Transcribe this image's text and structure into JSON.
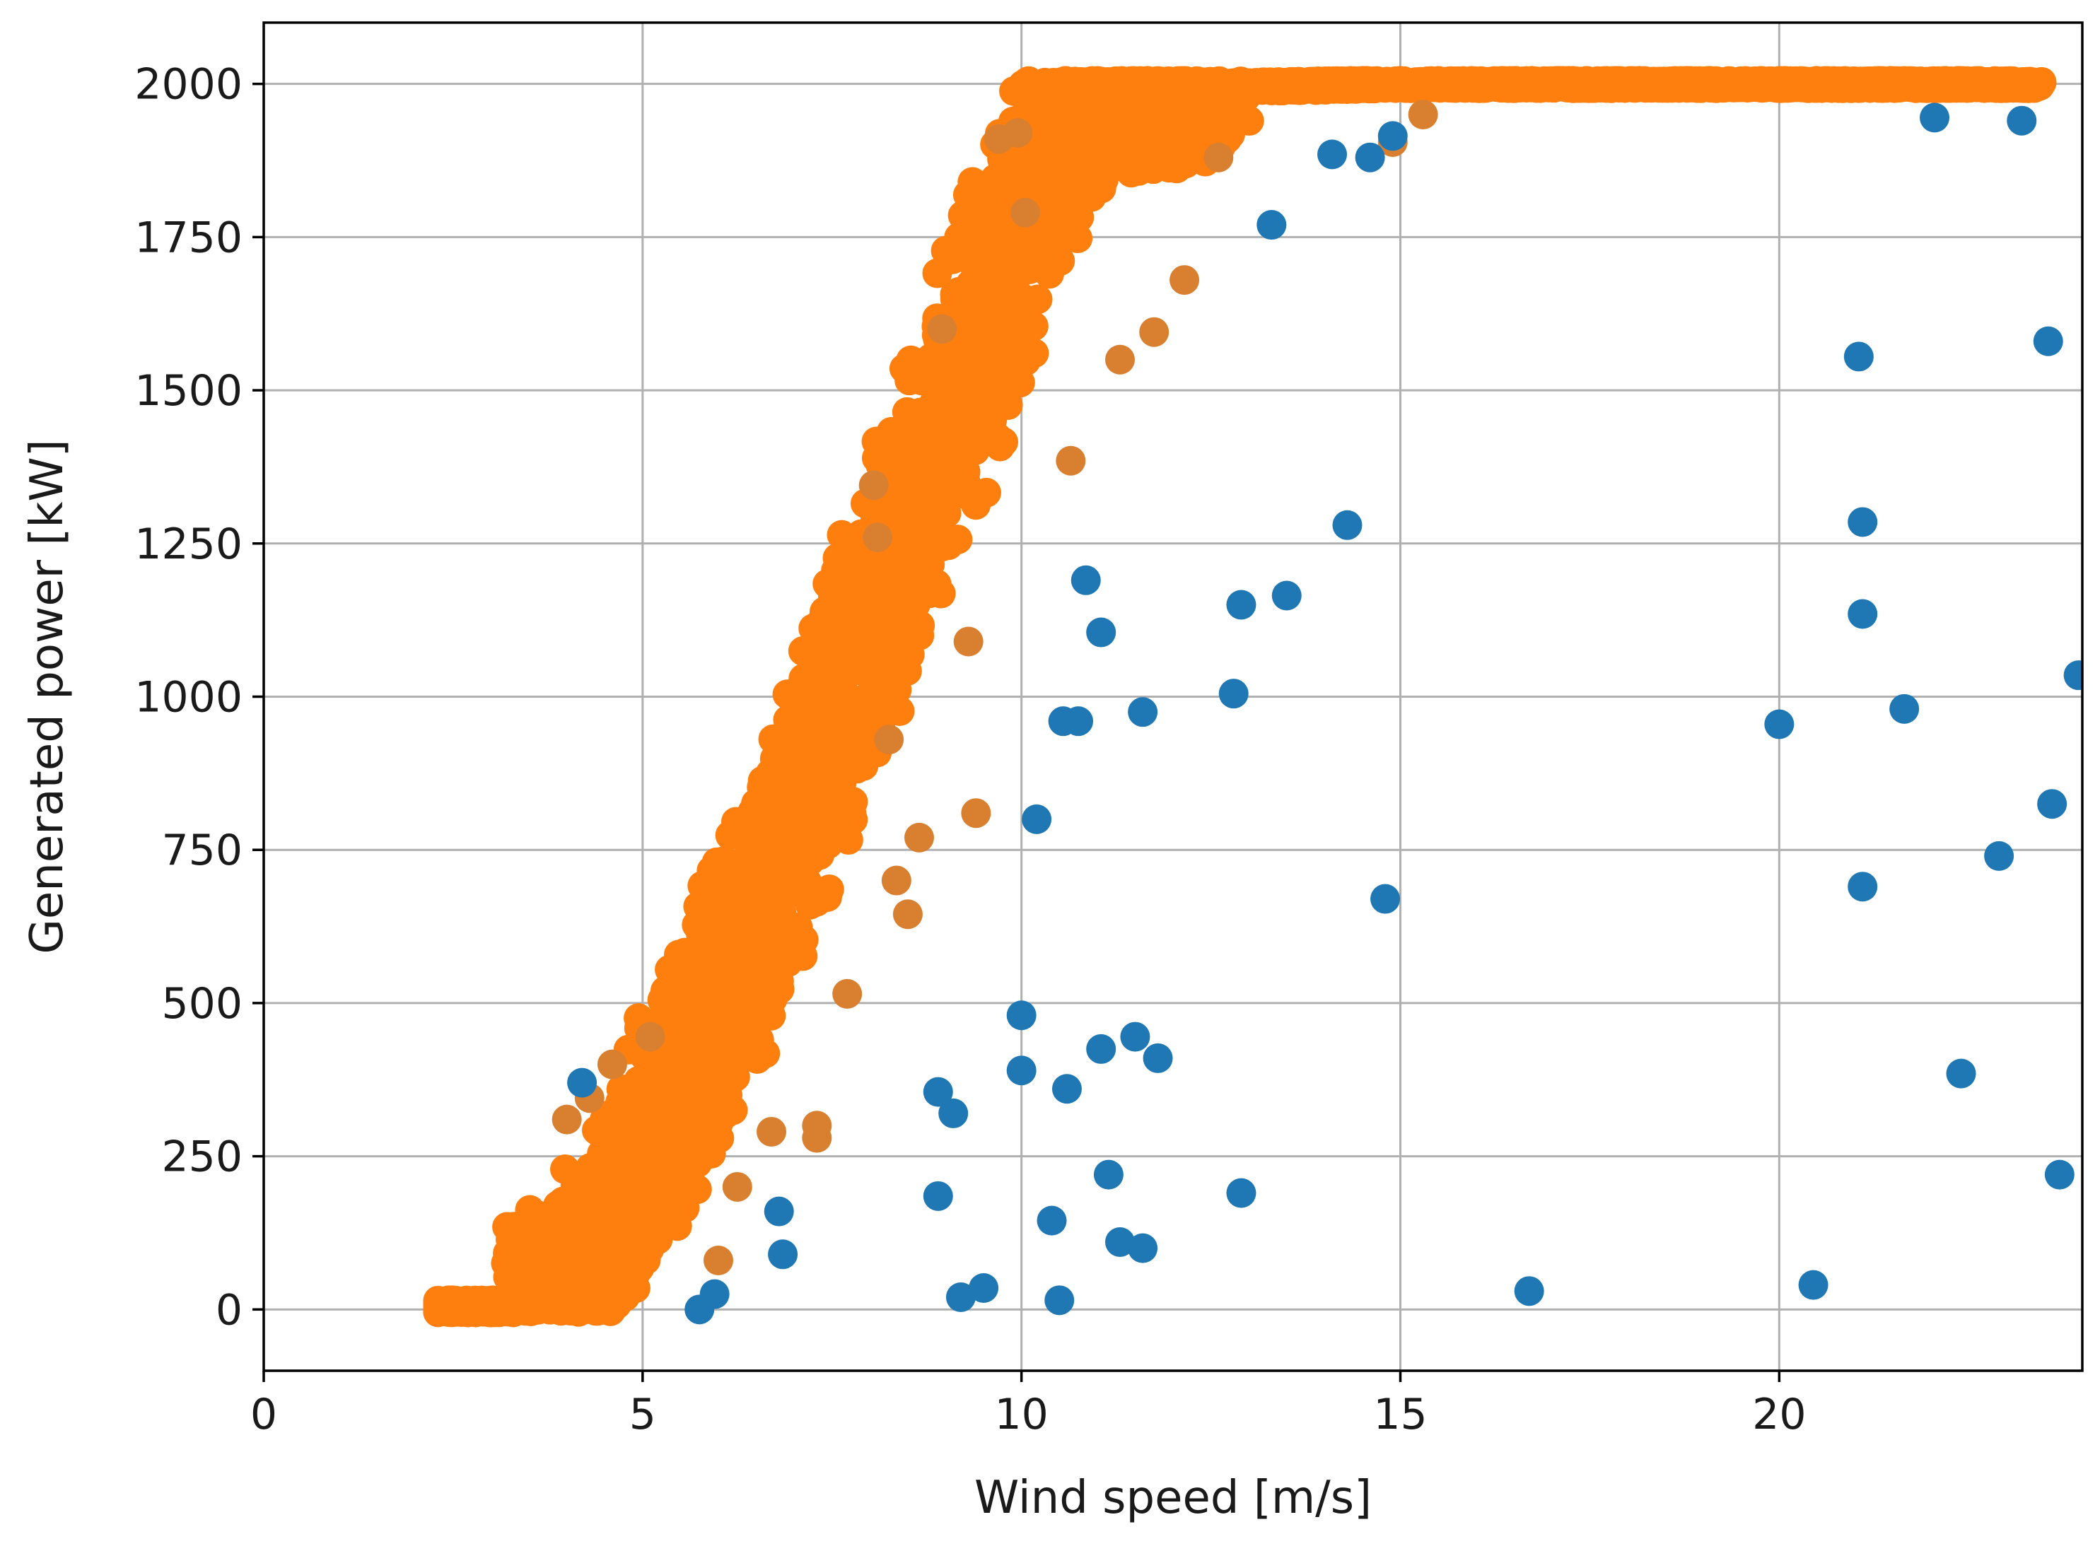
{
  "chart_data": {
    "type": "scatter",
    "title": "",
    "xlabel": "Wind speed [m/s]",
    "ylabel": "Generated power [kW]",
    "xlim": [
      0,
      24
    ],
    "ylim": [
      -100,
      2100
    ],
    "xticks": [
      0,
      5,
      10,
      15,
      20
    ],
    "yticks": [
      0,
      250,
      500,
      750,
      1000,
      1250,
      1500,
      1750,
      2000
    ],
    "grid": true,
    "legend": "none",
    "colors": {
      "blue": "#1f77b4",
      "orange": "#ff7f0e",
      "orange_dark": "#d98030",
      "grid": "#b0b0b0",
      "axis": "#000000"
    },
    "series": [
      {
        "color": "#1f77b4",
        "points": [
          [
            4.2,
            370
          ],
          [
            5.75,
            0
          ],
          [
            5.95,
            25
          ],
          [
            6.8,
            160
          ],
          [
            6.85,
            90
          ],
          [
            8.9,
            185
          ],
          [
            8.9,
            355
          ],
          [
            9.1,
            320
          ],
          [
            9.2,
            20
          ],
          [
            9.5,
            35
          ],
          [
            10.0,
            480
          ],
          [
            10.0,
            390
          ],
          [
            10.2,
            800
          ],
          [
            10.4,
            145
          ],
          [
            10.5,
            15
          ],
          [
            10.55,
            960
          ],
          [
            10.75,
            960
          ],
          [
            10.6,
            360
          ],
          [
            10.85,
            1190
          ],
          [
            11.05,
            1105
          ],
          [
            11.05,
            425
          ],
          [
            11.15,
            220
          ],
          [
            11.3,
            110
          ],
          [
            11.5,
            445
          ],
          [
            11.6,
            975
          ],
          [
            11.6,
            100
          ],
          [
            11.8,
            410
          ],
          [
            12.8,
            1005
          ],
          [
            12.9,
            1150
          ],
          [
            12.9,
            190
          ],
          [
            13.3,
            1770
          ],
          [
            13.5,
            1165
          ],
          [
            14.1,
            1885
          ],
          [
            14.3,
            1280
          ],
          [
            14.6,
            1880
          ],
          [
            14.8,
            670
          ],
          [
            14.9,
            1915
          ],
          [
            16.7,
            30
          ],
          [
            20.0,
            955
          ],
          [
            20.45,
            40
          ],
          [
            21.05,
            1555
          ],
          [
            21.1,
            1285
          ],
          [
            21.1,
            1135
          ],
          [
            21.1,
            690
          ],
          [
            21.65,
            980
          ],
          [
            22.05,
            1945
          ],
          [
            22.4,
            385
          ],
          [
            22.9,
            740
          ],
          [
            23.2,
            1940
          ],
          [
            23.55,
            1580
          ],
          [
            23.6,
            825
          ],
          [
            23.7,
            220
          ],
          [
            23.95,
            1035
          ]
        ]
      },
      {
        "color": "#ff7f0e",
        "curve": [
          [
            2.3,
            0
          ],
          [
            3.2,
            0
          ],
          [
            4.0,
            60
          ],
          [
            4.6,
            160
          ],
          [
            5.2,
            290
          ],
          [
            5.8,
            450
          ],
          [
            6.4,
            620
          ],
          [
            7.0,
            800
          ],
          [
            7.6,
            990
          ],
          [
            8.2,
            1180
          ],
          [
            8.8,
            1380
          ],
          [
            9.4,
            1580
          ],
          [
            9.9,
            1760
          ],
          [
            10.4,
            1900
          ],
          [
            11.0,
            1960
          ],
          [
            12.0,
            1985
          ],
          [
            13.0,
            1995
          ],
          [
            15.0,
            2000
          ],
          [
            23.4,
            2000
          ]
        ],
        "outliers": [
          [
            4.0,
            310
          ],
          [
            4.3,
            345
          ],
          [
            4.6,
            400
          ],
          [
            5.1,
            445
          ],
          [
            6.0,
            80
          ],
          [
            6.25,
            200
          ],
          [
            6.7,
            290
          ],
          [
            7.3,
            300
          ],
          [
            7.3,
            280
          ],
          [
            7.7,
            515
          ],
          [
            8.05,
            1345
          ],
          [
            8.1,
            1260
          ],
          [
            8.25,
            930
          ],
          [
            8.35,
            700
          ],
          [
            8.5,
            645
          ],
          [
            8.65,
            770
          ],
          [
            8.95,
            1600
          ],
          [
            9.3,
            1090
          ],
          [
            9.4,
            810
          ],
          [
            9.7,
            1910
          ],
          [
            9.95,
            1920
          ],
          [
            10.05,
            1790
          ],
          [
            10.65,
            1385
          ],
          [
            11.3,
            1550
          ],
          [
            11.75,
            1595
          ],
          [
            12.15,
            1680
          ],
          [
            12.6,
            1880
          ],
          [
            14.9,
            1905
          ],
          [
            15.3,
            1950
          ]
        ]
      }
    ]
  }
}
